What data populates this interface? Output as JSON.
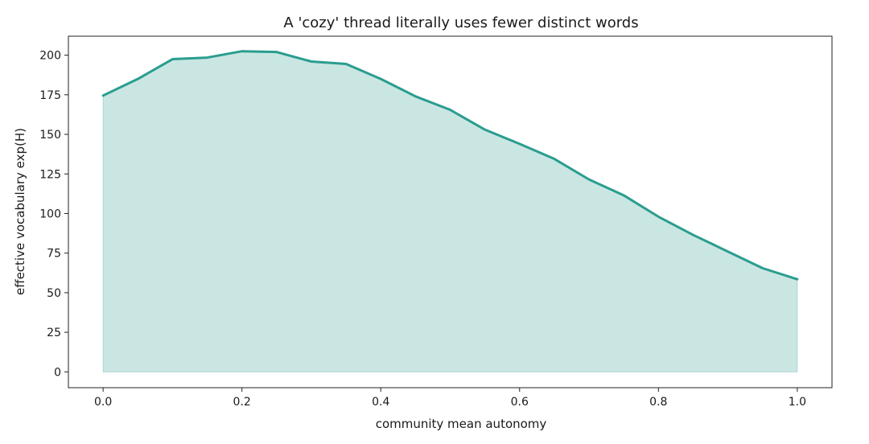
{
  "chart_data": {
    "type": "area",
    "title": "A 'cozy' thread literally uses fewer distinct words",
    "xlabel": "community mean autonomy",
    "ylabel": "effective vocabulary  exp(H)",
    "xlim": [
      -0.05,
      1.05
    ],
    "ylim": [
      -10,
      212
    ],
    "xticks": [
      0.0,
      0.2,
      0.4,
      0.6,
      0.8,
      1.0
    ],
    "xtick_labels": [
      "0.0",
      "0.2",
      "0.4",
      "0.6",
      "0.8",
      "1.0"
    ],
    "yticks": [
      0,
      25,
      50,
      75,
      100,
      125,
      150,
      175,
      200
    ],
    "ytick_labels": [
      "0",
      "25",
      "50",
      "75",
      "100",
      "125",
      "150",
      "175",
      "200"
    ],
    "grid": false,
    "legend": "none",
    "x": [
      0.0,
      0.05,
      0.1,
      0.15,
      0.2,
      0.25,
      0.3,
      0.35,
      0.4,
      0.45,
      0.5,
      0.55,
      0.6,
      0.65,
      0.7,
      0.75,
      0.8,
      0.85,
      0.9,
      0.95,
      1.0
    ],
    "series": [
      {
        "values": [
          174.5,
          185,
          197.5,
          198.5,
          202.5,
          202,
          196,
          194.5,
          185,
          174,
          165.5,
          153,
          144,
          134.5,
          121.5,
          111.5,
          98,
          86.5,
          76,
          65.5,
          58.5
        ],
        "line_color": "#2a9d8f",
        "fill_color": "#2a9d8f"
      }
    ]
  }
}
